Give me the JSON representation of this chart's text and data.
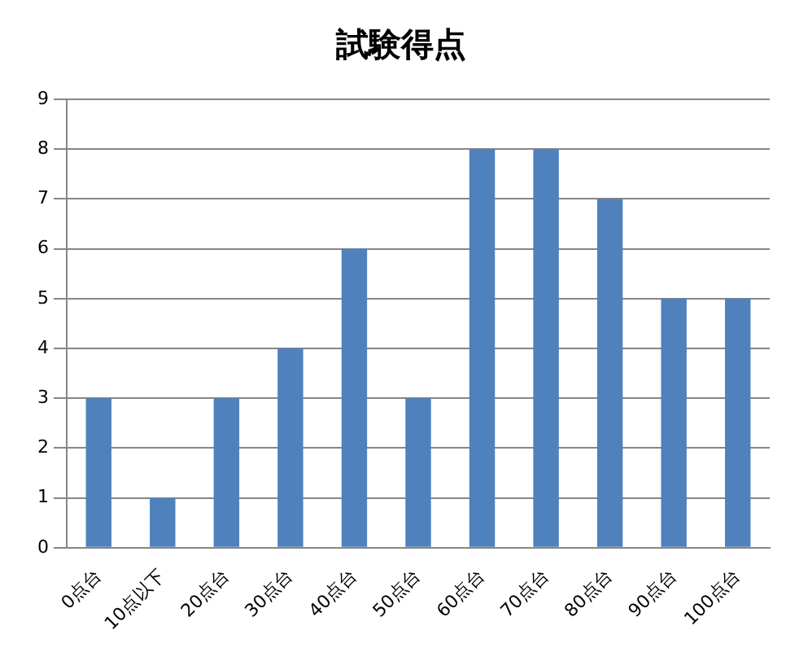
{
  "chart_data": {
    "type": "bar",
    "title": "試験得点",
    "categories": [
      "0点台",
      "10点以下",
      "20点台",
      "30点台",
      "40点台",
      "50点台",
      "60点台",
      "70点台",
      "80点台",
      "90点台",
      "100点台"
    ],
    "values": [
      3,
      1,
      3,
      4,
      6,
      3,
      8,
      8,
      7,
      5,
      5
    ],
    "color": "#4f81bd",
    "ylim": [
      0,
      9
    ],
    "yticks": [
      0,
      1,
      2,
      3,
      4,
      5,
      6,
      7,
      8,
      9
    ],
    "grid": "y",
    "legend": false
  }
}
